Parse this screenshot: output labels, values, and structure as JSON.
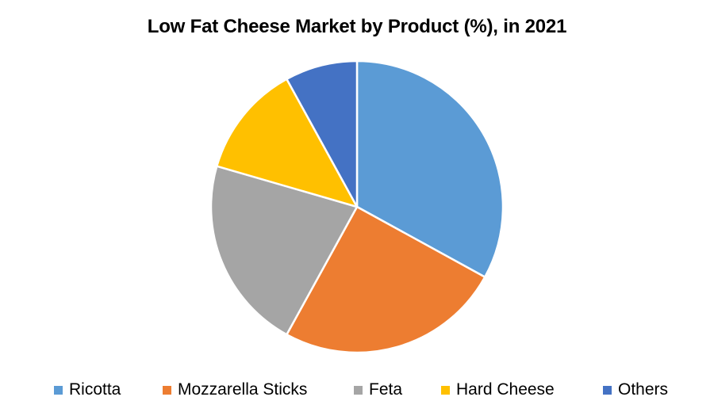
{
  "chart_data": {
    "type": "pie",
    "title": "Low Fat Cheese Market by Product (%), in 2021",
    "categories": [
      "Ricotta",
      "Mozzarella Sticks",
      "Feta",
      "Hard Cheese",
      "Others"
    ],
    "values": [
      33,
      25,
      21.5,
      12.5,
      8
    ],
    "unit": "%",
    "colors": [
      "#5B9BD5",
      "#ED7D31",
      "#A5A5A5",
      "#FFC000",
      "#4472C4"
    ],
    "start_angle_deg": 0,
    "direction": "clockwise",
    "legend": "bottom",
    "data_labels": false
  },
  "legend_items": [
    {
      "label": "Ricotta",
      "color": "#5B9BD5"
    },
    {
      "label": "Mozzarella Sticks",
      "color": "#ED7D31"
    },
    {
      "label": "Feta",
      "color": "#A5A5A5"
    },
    {
      "label": "Hard Cheese",
      "color": "#FFC000"
    },
    {
      "label": "Others",
      "color": "#4472C4"
    }
  ]
}
